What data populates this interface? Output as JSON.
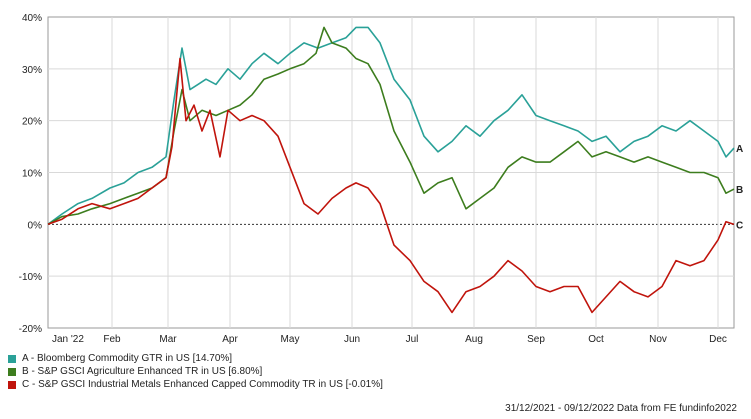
{
  "chart_data": {
    "type": "line",
    "title": "",
    "xlabel": "",
    "ylabel": "",
    "x_range": [
      "2021-12-31",
      "2022-12-09"
    ],
    "ylim": [
      -20,
      40
    ],
    "y_ticks": [
      -20,
      -10,
      0,
      10,
      20,
      30,
      40
    ],
    "y_tick_labels": [
      "-20%",
      "-10%",
      "0%",
      "10%",
      "20%",
      "30%",
      "40%"
    ],
    "x_tick_labels": [
      {
        "date": "2022-01-01",
        "label": "Jan '22"
      },
      {
        "date": "2022-02-01",
        "label": "Feb"
      },
      {
        "date": "2022-03-01",
        "label": "Mar"
      },
      {
        "date": "2022-04-01",
        "label": "Apr"
      },
      {
        "date": "2022-05-01",
        "label": "May"
      },
      {
        "date": "2022-06-01",
        "label": "Jun"
      },
      {
        "date": "2022-07-01",
        "label": "Jul"
      },
      {
        "date": "2022-08-01",
        "label": "Aug"
      },
      {
        "date": "2022-09-01",
        "label": "Sep"
      },
      {
        "date": "2022-10-01",
        "label": "Oct"
      },
      {
        "date": "2022-11-01",
        "label": "Nov"
      },
      {
        "date": "2022-12-01",
        "label": "Dec"
      }
    ],
    "grid": true,
    "legend_position": "bottom-left",
    "series": [
      {
        "name": "A - Bloomberg Commodity GTR in US [14.70%]",
        "end_label": "A",
        "color": "#2aa198",
        "points": [
          [
            "2021-12-31",
            0
          ],
          [
            "2022-01-07",
            2
          ],
          [
            "2022-01-15",
            4
          ],
          [
            "2022-01-22",
            5
          ],
          [
            "2022-01-31",
            7
          ],
          [
            "2022-02-07",
            8
          ],
          [
            "2022-02-14",
            10
          ],
          [
            "2022-02-21",
            11
          ],
          [
            "2022-02-28",
            13
          ],
          [
            "2022-03-04",
            24
          ],
          [
            "2022-03-08",
            34
          ],
          [
            "2022-03-12",
            26
          ],
          [
            "2022-03-16",
            27
          ],
          [
            "2022-03-20",
            28
          ],
          [
            "2022-03-25",
            27
          ],
          [
            "2022-03-31",
            30
          ],
          [
            "2022-04-06",
            28
          ],
          [
            "2022-04-12",
            31
          ],
          [
            "2022-04-18",
            33
          ],
          [
            "2022-04-25",
            31
          ],
          [
            "2022-05-01",
            33
          ],
          [
            "2022-05-08",
            35
          ],
          [
            "2022-05-15",
            34
          ],
          [
            "2022-05-22",
            35
          ],
          [
            "2022-05-29",
            36
          ],
          [
            "2022-06-03",
            38
          ],
          [
            "2022-06-09",
            38
          ],
          [
            "2022-06-15",
            35
          ],
          [
            "2022-06-22",
            28
          ],
          [
            "2022-06-30",
            24
          ],
          [
            "2022-07-07",
            17
          ],
          [
            "2022-07-14",
            14
          ],
          [
            "2022-07-21",
            16
          ],
          [
            "2022-07-28",
            19
          ],
          [
            "2022-08-04",
            17
          ],
          [
            "2022-08-11",
            20
          ],
          [
            "2022-08-18",
            22
          ],
          [
            "2022-08-25",
            25
          ],
          [
            "2022-09-01",
            21
          ],
          [
            "2022-09-08",
            20
          ],
          [
            "2022-09-15",
            19
          ],
          [
            "2022-09-22",
            18
          ],
          [
            "2022-09-29",
            16
          ],
          [
            "2022-10-06",
            17
          ],
          [
            "2022-10-13",
            14
          ],
          [
            "2022-10-20",
            16
          ],
          [
            "2022-10-27",
            17
          ],
          [
            "2022-11-03",
            19
          ],
          [
            "2022-11-10",
            18
          ],
          [
            "2022-11-17",
            20
          ],
          [
            "2022-11-24",
            18
          ],
          [
            "2022-12-01",
            16
          ],
          [
            "2022-12-05",
            13
          ],
          [
            "2022-12-09",
            14.7
          ]
        ]
      },
      {
        "name": "B - S&P GSCI Agriculture Enhanced TR in US [6.80%]",
        "end_label": "B",
        "color": "#3d7d1e",
        "points": [
          [
            "2021-12-31",
            0
          ],
          [
            "2022-01-07",
            1.5
          ],
          [
            "2022-01-15",
            2
          ],
          [
            "2022-01-22",
            3
          ],
          [
            "2022-01-31",
            4
          ],
          [
            "2022-02-07",
            5
          ],
          [
            "2022-02-14",
            6
          ],
          [
            "2022-02-21",
            7
          ],
          [
            "2022-02-28",
            9
          ],
          [
            "2022-03-04",
            18
          ],
          [
            "2022-03-08",
            26
          ],
          [
            "2022-03-12",
            20
          ],
          [
            "2022-03-18",
            22
          ],
          [
            "2022-03-25",
            21
          ],
          [
            "2022-03-31",
            22
          ],
          [
            "2022-04-06",
            23
          ],
          [
            "2022-04-12",
            25
          ],
          [
            "2022-04-18",
            28
          ],
          [
            "2022-04-25",
            29
          ],
          [
            "2022-05-01",
            30
          ],
          [
            "2022-05-08",
            31
          ],
          [
            "2022-05-14",
            33
          ],
          [
            "2022-05-18",
            38
          ],
          [
            "2022-05-22",
            35
          ],
          [
            "2022-05-29",
            34
          ],
          [
            "2022-06-03",
            32
          ],
          [
            "2022-06-09",
            31
          ],
          [
            "2022-06-15",
            27
          ],
          [
            "2022-06-22",
            18
          ],
          [
            "2022-06-30",
            12
          ],
          [
            "2022-07-07",
            6
          ],
          [
            "2022-07-14",
            8
          ],
          [
            "2022-07-21",
            9
          ],
          [
            "2022-07-28",
            3
          ],
          [
            "2022-08-04",
            5
          ],
          [
            "2022-08-11",
            7
          ],
          [
            "2022-08-18",
            11
          ],
          [
            "2022-08-25",
            13
          ],
          [
            "2022-09-01",
            12
          ],
          [
            "2022-09-08",
            12
          ],
          [
            "2022-09-15",
            14
          ],
          [
            "2022-09-22",
            16
          ],
          [
            "2022-09-29",
            13
          ],
          [
            "2022-10-06",
            14
          ],
          [
            "2022-10-13",
            13
          ],
          [
            "2022-10-20",
            12
          ],
          [
            "2022-10-27",
            13
          ],
          [
            "2022-11-03",
            12
          ],
          [
            "2022-11-10",
            11
          ],
          [
            "2022-11-17",
            10
          ],
          [
            "2022-11-24",
            10
          ],
          [
            "2022-12-01",
            9
          ],
          [
            "2022-12-05",
            6
          ],
          [
            "2022-12-09",
            6.8
          ]
        ]
      },
      {
        "name": "C - S&P GSCI Industrial Metals Enhanced Capped Commodity TR in US [-0.01%]",
        "end_label": "C",
        "color": "#c0140c",
        "points": [
          [
            "2021-12-31",
            0
          ],
          [
            "2022-01-07",
            1
          ],
          [
            "2022-01-15",
            3
          ],
          [
            "2022-01-22",
            4
          ],
          [
            "2022-01-31",
            3
          ],
          [
            "2022-02-07",
            4
          ],
          [
            "2022-02-14",
            5
          ],
          [
            "2022-02-21",
            7
          ],
          [
            "2022-02-28",
            9
          ],
          [
            "2022-03-03",
            15
          ],
          [
            "2022-03-07",
            32
          ],
          [
            "2022-03-10",
            20
          ],
          [
            "2022-03-14",
            23
          ],
          [
            "2022-03-18",
            18
          ],
          [
            "2022-03-22",
            22
          ],
          [
            "2022-03-27",
            13
          ],
          [
            "2022-03-31",
            22
          ],
          [
            "2022-04-06",
            20
          ],
          [
            "2022-04-12",
            21
          ],
          [
            "2022-04-18",
            20
          ],
          [
            "2022-04-25",
            17
          ],
          [
            "2022-05-01",
            11
          ],
          [
            "2022-05-08",
            4
          ],
          [
            "2022-05-15",
            2
          ],
          [
            "2022-05-22",
            5
          ],
          [
            "2022-05-29",
            7
          ],
          [
            "2022-06-03",
            8
          ],
          [
            "2022-06-09",
            7
          ],
          [
            "2022-06-15",
            4
          ],
          [
            "2022-06-22",
            -4
          ],
          [
            "2022-06-30",
            -7
          ],
          [
            "2022-07-07",
            -11
          ],
          [
            "2022-07-14",
            -13
          ],
          [
            "2022-07-21",
            -17
          ],
          [
            "2022-07-28",
            -13
          ],
          [
            "2022-08-04",
            -12
          ],
          [
            "2022-08-11",
            -10
          ],
          [
            "2022-08-18",
            -7
          ],
          [
            "2022-08-25",
            -9
          ],
          [
            "2022-09-01",
            -12
          ],
          [
            "2022-09-08",
            -13
          ],
          [
            "2022-09-15",
            -12
          ],
          [
            "2022-09-22",
            -12
          ],
          [
            "2022-09-29",
            -17
          ],
          [
            "2022-10-06",
            -14
          ],
          [
            "2022-10-13",
            -11
          ],
          [
            "2022-10-20",
            -13
          ],
          [
            "2022-10-27",
            -14
          ],
          [
            "2022-11-03",
            -12
          ],
          [
            "2022-11-10",
            -7
          ],
          [
            "2022-11-17",
            -8
          ],
          [
            "2022-11-24",
            -7
          ],
          [
            "2022-12-01",
            -3
          ],
          [
            "2022-12-05",
            0.5
          ],
          [
            "2022-12-09",
            -0.01
          ]
        ]
      }
    ]
  },
  "footer": "31/12/2021 - 09/12/2022 Data from FE fundinfo2022"
}
